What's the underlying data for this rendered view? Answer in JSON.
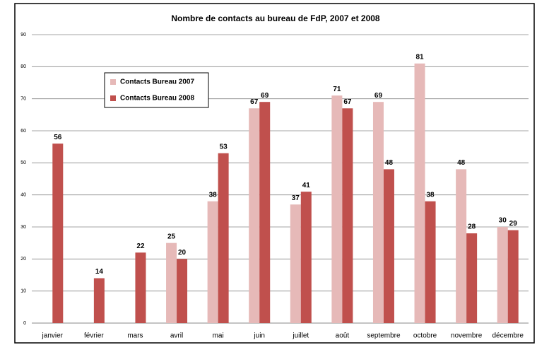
{
  "chart_data": {
    "type": "bar",
    "title": "Nombre de contacts au bureau de FdP, 2007 et 2008",
    "categories": [
      "janvier",
      "février",
      "mars",
      "avril",
      "mai",
      "juin",
      "juillet",
      "août",
      "septembre",
      "octobre",
      "novembre",
      "décembre"
    ],
    "series": [
      {
        "name": "Contacts Bureau 2007",
        "color": "#e6b9b8",
        "values": [
          null,
          null,
          null,
          25,
          38,
          67,
          37,
          71,
          69,
          81,
          48,
          30
        ]
      },
      {
        "name": "Contacts Bureau 2008",
        "color": "#c0504d",
        "values": [
          56,
          14,
          22,
          20,
          53,
          69,
          41,
          67,
          48,
          38,
          28,
          29
        ]
      }
    ],
    "ylim": [
      0,
      90
    ],
    "yticks": [
      0,
      10,
      20,
      30,
      40,
      50,
      60,
      70,
      80,
      90
    ],
    "grid": true,
    "legend": "upper-left"
  }
}
